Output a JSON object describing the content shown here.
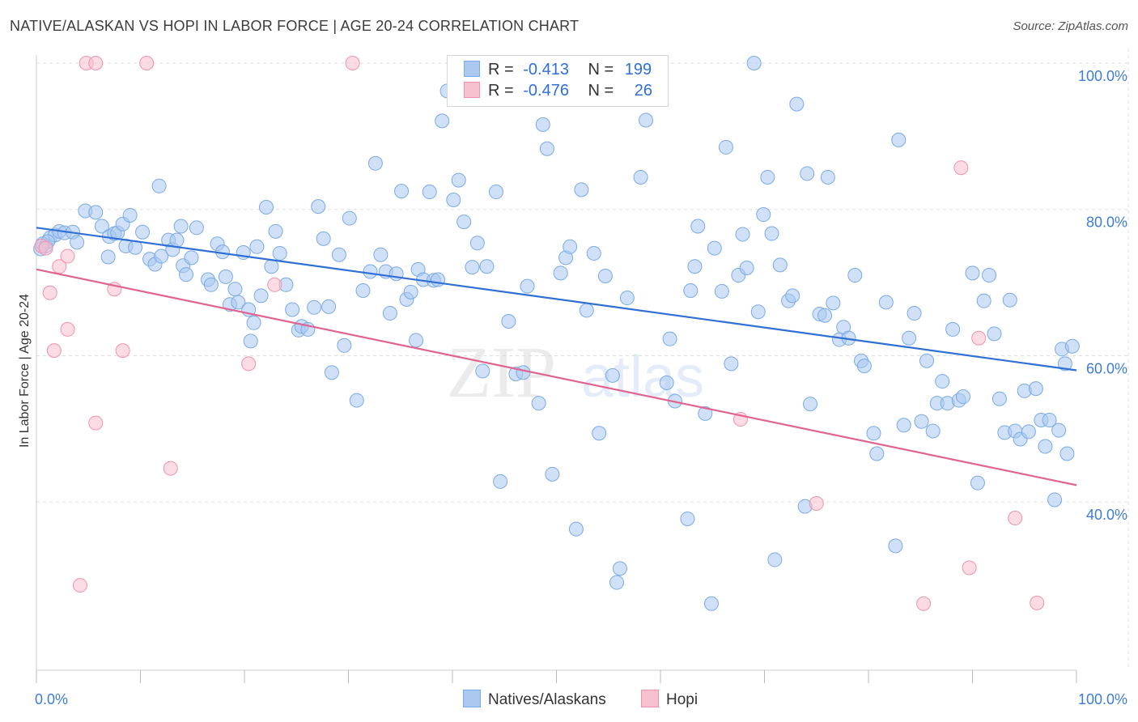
{
  "header": {
    "title": "NATIVE/ALASKAN VS HOPI IN LABOR FORCE | AGE 20-24 CORRELATION CHART",
    "source": "Source: ZipAtlas.com"
  },
  "legend_top": {
    "rows": [
      {
        "r_label": "R =",
        "r_value": "-0.413",
        "n_label": "N =",
        "n_value": "199"
      },
      {
        "r_label": "R =",
        "r_value": "-0.476",
        "n_label": "N =",
        "n_value": "26"
      }
    ]
  },
  "legend_bottom": {
    "items": [
      {
        "label": "Natives/Alaskans"
      },
      {
        "label": "Hopi"
      }
    ]
  },
  "watermark": {
    "zip": "ZIP",
    "atlas": "atlas"
  },
  "colors": {
    "natives_fill": "#aac8f0",
    "natives_stroke": "#7aaae6",
    "natives_line": "#2f6fd6",
    "hopi_fill": "#f7c0cf",
    "hopi_stroke": "#ee93ad",
    "hopi_line": "#e06490",
    "tick_text": "#3d7dd3",
    "grid": "#dddddd"
  },
  "chart_data": {
    "type": "scatter",
    "title": "NATIVE/ALASKAN VS HOPI IN LABOR FORCE | AGE 20-24 CORRELATION CHART",
    "xlabel": "",
    "ylabel": "In Labor Force | Age 20-24",
    "xlim": [
      0,
      100
    ],
    "ylim": [
      17,
      100
    ],
    "x_tick_labels": [
      "0.0%",
      "100.0%"
    ],
    "y_ticks": [
      40,
      60,
      80,
      100
    ],
    "y_tick_labels": [
      "40.0%",
      "60.0%",
      "80.0%",
      "100.0%"
    ],
    "grid": true,
    "legend_position": "top-center",
    "series": [
      {
        "name": "Natives/Alaskans",
        "r": -0.413,
        "n": 199,
        "trend": [
          [
            0,
            77.5
          ],
          [
            100,
            58.0
          ]
        ],
        "points": [
          [
            0.4,
            74.6
          ],
          [
            0.9,
            75.0
          ],
          [
            1.3,
            76.1
          ],
          [
            1.8,
            76.5
          ],
          [
            2.2,
            77.0
          ],
          [
            0.6,
            75.3
          ],
          [
            1.1,
            75.6
          ],
          [
            2.7,
            76.8
          ],
          [
            3.5,
            76.9
          ],
          [
            3.9,
            75.5
          ],
          [
            4.7,
            79.8
          ],
          [
            5.7,
            79.6
          ],
          [
            6.3,
            77.7
          ],
          [
            7.0,
            76.3
          ],
          [
            7.5,
            76.7
          ],
          [
            6.9,
            73.5
          ],
          [
            7.8,
            76.8
          ],
          [
            8.3,
            78.0
          ],
          [
            8.6,
            75.0
          ],
          [
            9.0,
            79.2
          ],
          [
            9.5,
            74.8
          ],
          [
            10.2,
            76.9
          ],
          [
            10.9,
            73.2
          ],
          [
            11.4,
            72.5
          ],
          [
            11.8,
            83.2
          ],
          [
            12.0,
            73.6
          ],
          [
            12.7,
            75.8
          ],
          [
            13.1,
            74.5
          ],
          [
            13.5,
            75.8
          ],
          [
            13.9,
            77.7
          ],
          [
            14.1,
            72.3
          ],
          [
            14.4,
            71.1
          ],
          [
            14.9,
            73.4
          ],
          [
            15.4,
            77.5
          ],
          [
            16.5,
            70.4
          ],
          [
            16.8,
            69.7
          ],
          [
            17.4,
            75.3
          ],
          [
            17.9,
            74.2
          ],
          [
            18.2,
            70.8
          ],
          [
            18.6,
            67.0
          ],
          [
            19.1,
            69.1
          ],
          [
            19.4,
            67.3
          ],
          [
            19.9,
            74.1
          ],
          [
            20.4,
            66.3
          ],
          [
            20.6,
            62.0
          ],
          [
            20.9,
            64.5
          ],
          [
            21.2,
            74.9
          ],
          [
            21.6,
            68.2
          ],
          [
            22.1,
            80.3
          ],
          [
            22.6,
            72.2
          ],
          [
            23.0,
            77.0
          ],
          [
            23.4,
            74.0
          ],
          [
            24.0,
            69.7
          ],
          [
            24.6,
            66.3
          ],
          [
            25.2,
            63.5
          ],
          [
            25.5,
            64.0
          ],
          [
            26.1,
            63.6
          ],
          [
            26.7,
            66.6
          ],
          [
            27.1,
            80.4
          ],
          [
            27.6,
            76.0
          ],
          [
            28.1,
            66.7
          ],
          [
            28.4,
            57.7
          ],
          [
            29.1,
            73.8
          ],
          [
            29.6,
            61.4
          ],
          [
            30.1,
            78.8
          ],
          [
            30.8,
            53.9
          ],
          [
            31.4,
            68.9
          ],
          [
            32.1,
            71.5
          ],
          [
            32.6,
            86.3
          ],
          [
            33.1,
            73.8
          ],
          [
            33.6,
            71.5
          ],
          [
            34.0,
            65.8
          ],
          [
            34.6,
            71.2
          ],
          [
            35.1,
            82.5
          ],
          [
            35.6,
            67.7
          ],
          [
            36.0,
            68.7
          ],
          [
            36.5,
            62.1
          ],
          [
            36.7,
            71.8
          ],
          [
            37.2,
            70.4
          ],
          [
            37.8,
            82.4
          ],
          [
            38.2,
            70.3
          ],
          [
            38.6,
            70.4
          ],
          [
            39.0,
            92.1
          ],
          [
            39.5,
            96.2
          ],
          [
            40.1,
            81.3
          ],
          [
            40.6,
            84.0
          ],
          [
            41.1,
            78.3
          ],
          [
            41.9,
            72.1
          ],
          [
            42.4,
            75.4
          ],
          [
            42.9,
            57.9
          ],
          [
            43.3,
            72.2
          ],
          [
            44.2,
            82.4
          ],
          [
            44.6,
            42.8
          ],
          [
            45.0,
            97.5
          ],
          [
            45.4,
            64.7
          ],
          [
            46.1,
            57.5
          ],
          [
            46.8,
            57.7
          ],
          [
            47.2,
            69.5
          ],
          [
            47.6,
            96.2
          ],
          [
            48.3,
            53.5
          ],
          [
            48.7,
            91.6
          ],
          [
            49.1,
            88.3
          ],
          [
            49.6,
            43.8
          ],
          [
            50.4,
            71.3
          ],
          [
            50.9,
            73.4
          ],
          [
            51.3,
            74.9
          ],
          [
            51.9,
            36.3
          ],
          [
            52.4,
            82.7
          ],
          [
            52.9,
            66.2
          ],
          [
            53.6,
            74.0
          ],
          [
            54.1,
            49.4
          ],
          [
            54.7,
            70.9
          ],
          [
            55.4,
            57.3
          ],
          [
            56.1,
            30.9
          ],
          [
            55.8,
            29.0
          ],
          [
            56.8,
            67.9
          ],
          [
            57.6,
            99.4
          ],
          [
            58.1,
            84.4
          ],
          [
            58.6,
            92.2
          ],
          [
            59.3,
            99.0
          ],
          [
            60.0,
            100.0
          ],
          [
            60.6,
            56.3
          ],
          [
            60.9,
            62.3
          ],
          [
            61.4,
            53.8
          ],
          [
            62.6,
            37.7
          ],
          [
            62.9,
            68.9
          ],
          [
            63.3,
            72.2
          ],
          [
            63.6,
            77.7
          ],
          [
            64.3,
            52.1
          ],
          [
            64.9,
            26.1
          ],
          [
            65.2,
            74.7
          ],
          [
            65.9,
            68.8
          ],
          [
            66.3,
            88.5
          ],
          [
            66.8,
            58.9
          ],
          [
            67.5,
            71.0
          ],
          [
            67.9,
            76.6
          ],
          [
            68.3,
            72.0
          ],
          [
            69.0,
            100.0
          ],
          [
            69.4,
            66.0
          ],
          [
            69.9,
            79.3
          ],
          [
            70.3,
            84.4
          ],
          [
            70.7,
            76.7
          ],
          [
            71.0,
            32.1
          ],
          [
            71.5,
            72.4
          ],
          [
            72.3,
            67.5
          ],
          [
            72.7,
            68.2
          ],
          [
            73.1,
            94.4
          ],
          [
            73.9,
            39.4
          ],
          [
            74.1,
            84.9
          ],
          [
            74.4,
            53.4
          ],
          [
            75.3,
            65.7
          ],
          [
            75.8,
            65.5
          ],
          [
            76.1,
            84.4
          ],
          [
            76.6,
            67.2
          ],
          [
            77.2,
            62.2
          ],
          [
            77.6,
            63.9
          ],
          [
            78.1,
            62.4
          ],
          [
            78.7,
            71.0
          ],
          [
            79.3,
            59.3
          ],
          [
            79.6,
            58.6
          ],
          [
            80.5,
            49.4
          ],
          [
            80.8,
            46.6
          ],
          [
            81.7,
            67.3
          ],
          [
            82.6,
            34.0
          ],
          [
            82.9,
            89.5
          ],
          [
            83.4,
            50.5
          ],
          [
            83.9,
            62.4
          ],
          [
            84.4,
            65.8
          ],
          [
            85.1,
            51.0
          ],
          [
            85.6,
            59.3
          ],
          [
            86.2,
            49.7
          ],
          [
            86.6,
            53.5
          ],
          [
            87.1,
            56.5
          ],
          [
            87.6,
            53.5
          ],
          [
            88.1,
            63.6
          ],
          [
            88.7,
            53.9
          ],
          [
            89.1,
            54.4
          ],
          [
            90.0,
            71.3
          ],
          [
            90.5,
            42.6
          ],
          [
            91.1,
            67.5
          ],
          [
            91.6,
            71.0
          ],
          [
            92.1,
            63.0
          ],
          [
            92.6,
            54.1
          ],
          [
            93.1,
            49.5
          ],
          [
            93.6,
            67.6
          ],
          [
            94.1,
            49.7
          ],
          [
            94.6,
            48.6
          ],
          [
            95.0,
            55.2
          ],
          [
            95.4,
            49.6
          ],
          [
            96.1,
            55.5
          ],
          [
            96.6,
            51.2
          ],
          [
            97.0,
            47.6
          ],
          [
            97.4,
            51.2
          ],
          [
            97.9,
            40.3
          ],
          [
            98.3,
            49.8
          ],
          [
            98.6,
            60.9
          ],
          [
            99.1,
            46.6
          ],
          [
            99.6,
            61.3
          ],
          [
            98.9,
            58.9
          ]
        ]
      },
      {
        "name": "Hopi",
        "r": -0.476,
        "n": 26,
        "trend": [
          [
            0,
            71.8
          ],
          [
            100,
            42.3
          ]
        ],
        "points": [
          [
            0.5,
            75.0
          ],
          [
            0.9,
            74.7
          ],
          [
            1.3,
            68.6
          ],
          [
            1.7,
            60.7
          ],
          [
            2.2,
            72.2
          ],
          [
            3.0,
            73.6
          ],
          [
            3.0,
            63.6
          ],
          [
            4.2,
            28.6
          ],
          [
            4.8,
            100.0
          ],
          [
            5.7,
            100.0
          ],
          [
            5.7,
            50.8
          ],
          [
            7.5,
            69.1
          ],
          [
            8.3,
            60.7
          ],
          [
            10.6,
            100.0
          ],
          [
            12.9,
            44.6
          ],
          [
            20.4,
            58.9
          ],
          [
            22.9,
            69.7
          ],
          [
            30.4,
            100.0
          ],
          [
            67.7,
            51.3
          ],
          [
            75.0,
            39.8
          ],
          [
            85.3,
            26.1
          ],
          [
            88.9,
            85.7
          ],
          [
            89.7,
            31.0
          ],
          [
            90.6,
            62.4
          ],
          [
            94.1,
            37.8
          ],
          [
            96.2,
            26.2
          ]
        ]
      }
    ]
  }
}
